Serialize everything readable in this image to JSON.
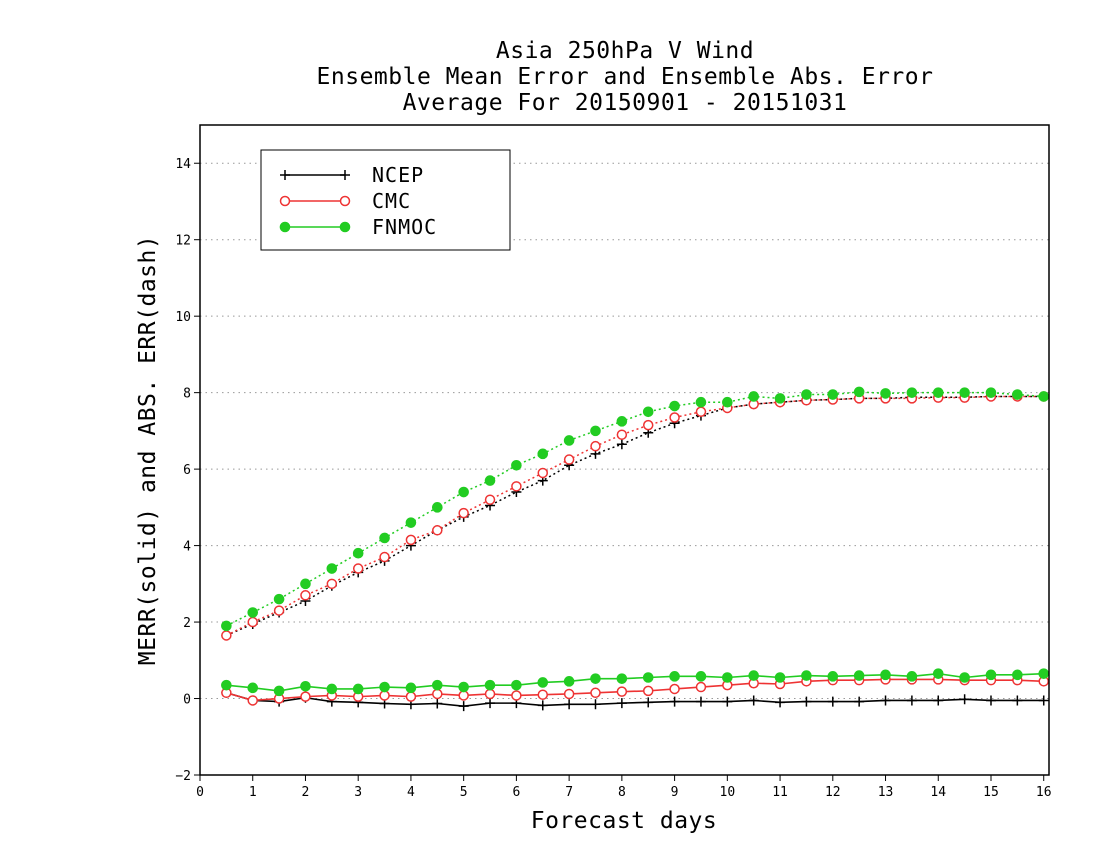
{
  "chart_data": {
    "type": "line",
    "title_lines": [
      "Asia 250hPa V Wind",
      "Ensemble Mean Error and Ensemble Abs. Error",
      "Average For 20150901 - 20151031"
    ],
    "xlabel": "Forecast days",
    "ylabel": "MERR(solid) and ABS. ERR(dash)",
    "xlim": [
      0,
      16.1
    ],
    "ylim": [
      -2,
      15
    ],
    "xticks": [
      0,
      1,
      2,
      3,
      4,
      5,
      6,
      7,
      8,
      9,
      10,
      11,
      12,
      13,
      14,
      15,
      16
    ],
    "yticks": [
      -2,
      0,
      2,
      4,
      6,
      8,
      10,
      12,
      14
    ],
    "grid": "horizontal dotted at y ticks",
    "legend_position": "top-left",
    "x": [
      0.5,
      1,
      1.5,
      2,
      2.5,
      3,
      3.5,
      4,
      4.5,
      5,
      5.5,
      6,
      6.5,
      7,
      7.5,
      8,
      8.5,
      9,
      9.5,
      10,
      10.5,
      11,
      11.5,
      12,
      12.5,
      13,
      13.5,
      14,
      14.5,
      15,
      15.5,
      16
    ],
    "series": [
      {
        "name": "NCEP",
        "color": "#000000",
        "marker": "plus",
        "merr": [
          0.15,
          -0.05,
          -0.08,
          0.02,
          -0.08,
          -0.1,
          -0.13,
          -0.15,
          -0.13,
          -0.2,
          -0.12,
          -0.12,
          -0.18,
          -0.15,
          -0.15,
          -0.12,
          -0.1,
          -0.08,
          -0.08,
          -0.08,
          -0.05,
          -0.1,
          -0.08,
          -0.08,
          -0.08,
          -0.05,
          -0.05,
          -0.05,
          -0.02,
          -0.05,
          -0.05,
          -0.05
        ],
        "abs_err": [
          1.65,
          1.95,
          2.25,
          2.55,
          2.95,
          3.3,
          3.6,
          4.0,
          4.4,
          4.75,
          5.05,
          5.4,
          5.7,
          6.1,
          6.4,
          6.65,
          6.95,
          7.2,
          7.4,
          7.6,
          7.7,
          7.75,
          7.8,
          7.82,
          7.85,
          7.85,
          7.88,
          7.88,
          7.88,
          7.9,
          7.9,
          7.9
        ]
      },
      {
        "name": "CMC",
        "color": "#ee3333",
        "marker": "open-circle",
        "merr": [
          0.15,
          -0.05,
          0.0,
          0.05,
          0.08,
          0.05,
          0.08,
          0.05,
          0.12,
          0.08,
          0.12,
          0.08,
          0.1,
          0.12,
          0.15,
          0.18,
          0.2,
          0.25,
          0.3,
          0.35,
          0.4,
          0.38,
          0.45,
          0.48,
          0.48,
          0.5,
          0.5,
          0.5,
          0.48,
          0.48,
          0.48,
          0.45
        ],
        "abs_err": [
          1.65,
          2.0,
          2.3,
          2.7,
          3.0,
          3.4,
          3.7,
          4.15,
          4.4,
          4.85,
          5.2,
          5.55,
          5.9,
          6.25,
          6.6,
          6.9,
          7.15,
          7.35,
          7.5,
          7.6,
          7.7,
          7.75,
          7.8,
          7.82,
          7.85,
          7.85,
          7.85,
          7.87,
          7.87,
          7.9,
          7.9,
          7.9
        ]
      },
      {
        "name": "FNMOC",
        "color": "#22cc22",
        "marker": "filled-circle",
        "merr": [
          0.35,
          0.28,
          0.2,
          0.32,
          0.25,
          0.25,
          0.3,
          0.28,
          0.35,
          0.3,
          0.35,
          0.35,
          0.42,
          0.45,
          0.52,
          0.52,
          0.55,
          0.58,
          0.58,
          0.55,
          0.6,
          0.55,
          0.6,
          0.58,
          0.6,
          0.62,
          0.58,
          0.65,
          0.55,
          0.62,
          0.62,
          0.65
        ],
        "abs_err": [
          1.9,
          2.25,
          2.6,
          3.0,
          3.4,
          3.8,
          4.2,
          4.6,
          5.0,
          5.4,
          5.7,
          6.1,
          6.4,
          6.75,
          7.0,
          7.25,
          7.5,
          7.65,
          7.75,
          7.75,
          7.9,
          7.85,
          7.95,
          7.95,
          8.02,
          7.98,
          8.0,
          8.0,
          8.0,
          8.0,
          7.95,
          7.9
        ]
      }
    ]
  }
}
